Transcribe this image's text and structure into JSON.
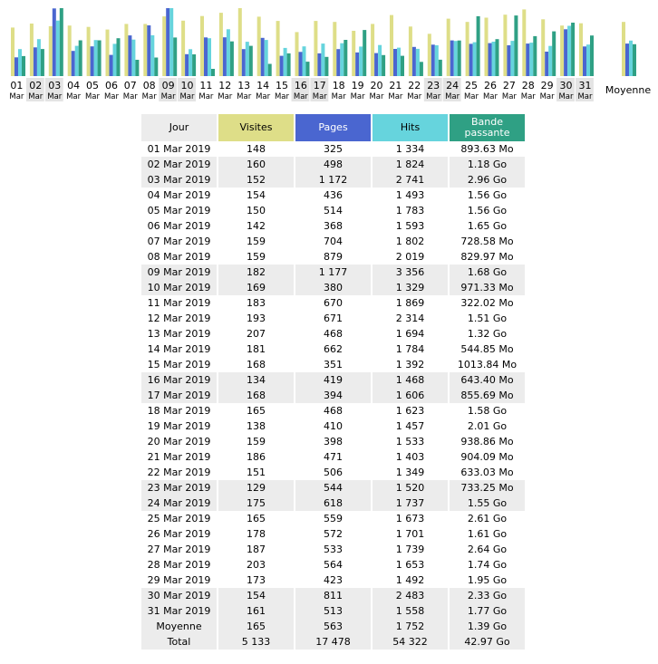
{
  "colors": {
    "visites": "#dede88",
    "pages": "#4a66d0",
    "hits": "#66d4dd",
    "bande": "#2fa084",
    "row_shade": "#ececec",
    "header_jour": "#ececec"
  },
  "table": {
    "headers": [
      "Jour",
      "Visites",
      "Pages",
      "Hits",
      "Bande passante"
    ],
    "rows": [
      {
        "jour": "01 Mar 2019",
        "visites": "148",
        "pages": "325",
        "hits": "1 334",
        "bande": "893.63 Mo",
        "shade": false
      },
      {
        "jour": "02 Mar 2019",
        "visites": "160",
        "pages": "498",
        "hits": "1 824",
        "bande": "1.18 Go",
        "shade": true
      },
      {
        "jour": "03 Mar 2019",
        "visites": "152",
        "pages": "1 172",
        "hits": "2 741",
        "bande": "2.96 Go",
        "shade": true
      },
      {
        "jour": "04 Mar 2019",
        "visites": "154",
        "pages": "436",
        "hits": "1 493",
        "bande": "1.56 Go",
        "shade": false
      },
      {
        "jour": "05 Mar 2019",
        "visites": "150",
        "pages": "514",
        "hits": "1 783",
        "bande": "1.56 Go",
        "shade": false
      },
      {
        "jour": "06 Mar 2019",
        "visites": "142",
        "pages": "368",
        "hits": "1 593",
        "bande": "1.65 Go",
        "shade": false
      },
      {
        "jour": "07 Mar 2019",
        "visites": "159",
        "pages": "704",
        "hits": "1 802",
        "bande": "728.58 Mo",
        "shade": false
      },
      {
        "jour": "08 Mar 2019",
        "visites": "159",
        "pages": "879",
        "hits": "2 019",
        "bande": "829.97 Mo",
        "shade": false
      },
      {
        "jour": "09 Mar 2019",
        "visites": "182",
        "pages": "1 177",
        "hits": "3 356",
        "bande": "1.68 Go",
        "shade": true
      },
      {
        "jour": "10 Mar 2019",
        "visites": "169",
        "pages": "380",
        "hits": "1 329",
        "bande": "971.33 Mo",
        "shade": true
      },
      {
        "jour": "11 Mar 2019",
        "visites": "183",
        "pages": "670",
        "hits": "1 869",
        "bande": "322.02 Mo",
        "shade": false
      },
      {
        "jour": "12 Mar 2019",
        "visites": "193",
        "pages": "671",
        "hits": "2 314",
        "bande": "1.51 Go",
        "shade": false
      },
      {
        "jour": "13 Mar 2019",
        "visites": "207",
        "pages": "468",
        "hits": "1 694",
        "bande": "1.32 Go",
        "shade": false
      },
      {
        "jour": "14 Mar 2019",
        "visites": "181",
        "pages": "662",
        "hits": "1 784",
        "bande": "544.85 Mo",
        "shade": false
      },
      {
        "jour": "15 Mar 2019",
        "visites": "168",
        "pages": "351",
        "hits": "1 392",
        "bande": "1013.84 Mo",
        "shade": false
      },
      {
        "jour": "16 Mar 2019",
        "visites": "134",
        "pages": "419",
        "hits": "1 468",
        "bande": "643.40 Mo",
        "shade": true
      },
      {
        "jour": "17 Mar 2019",
        "visites": "168",
        "pages": "394",
        "hits": "1 606",
        "bande": "855.69 Mo",
        "shade": true
      },
      {
        "jour": "18 Mar 2019",
        "visites": "165",
        "pages": "468",
        "hits": "1 623",
        "bande": "1.58 Go",
        "shade": false
      },
      {
        "jour": "19 Mar 2019",
        "visites": "138",
        "pages": "410",
        "hits": "1 457",
        "bande": "2.01 Go",
        "shade": false
      },
      {
        "jour": "20 Mar 2019",
        "visites": "159",
        "pages": "398",
        "hits": "1 533",
        "bande": "938.86 Mo",
        "shade": false
      },
      {
        "jour": "21 Mar 2019",
        "visites": "186",
        "pages": "471",
        "hits": "1 403",
        "bande": "904.09 Mo",
        "shade": false
      },
      {
        "jour": "22 Mar 2019",
        "visites": "151",
        "pages": "506",
        "hits": "1 349",
        "bande": "633.03 Mo",
        "shade": false
      },
      {
        "jour": "23 Mar 2019",
        "visites": "129",
        "pages": "544",
        "hits": "1 520",
        "bande": "733.25 Mo",
        "shade": true
      },
      {
        "jour": "24 Mar 2019",
        "visites": "175",
        "pages": "618",
        "hits": "1 737",
        "bande": "1.55 Go",
        "shade": true
      },
      {
        "jour": "25 Mar 2019",
        "visites": "165",
        "pages": "559",
        "hits": "1 673",
        "bande": "2.61 Go",
        "shade": false
      },
      {
        "jour": "26 Mar 2019",
        "visites": "178",
        "pages": "572",
        "hits": "1 701",
        "bande": "1.61 Go",
        "shade": false
      },
      {
        "jour": "27 Mar 2019",
        "visites": "187",
        "pages": "533",
        "hits": "1 739",
        "bande": "2.64 Go",
        "shade": false
      },
      {
        "jour": "28 Mar 2019",
        "visites": "203",
        "pages": "564",
        "hits": "1 653",
        "bande": "1.74 Go",
        "shade": false
      },
      {
        "jour": "29 Mar 2019",
        "visites": "173",
        "pages": "423",
        "hits": "1 492",
        "bande": "1.95 Go",
        "shade": false
      },
      {
        "jour": "30 Mar 2019",
        "visites": "154",
        "pages": "811",
        "hits": "2 483",
        "bande": "2.33 Go",
        "shade": true
      },
      {
        "jour": "31 Mar 2019",
        "visites": "161",
        "pages": "513",
        "hits": "1 558",
        "bande": "1.77 Go",
        "shade": true
      }
    ],
    "moyenne": {
      "jour": "Moyenne",
      "visites": "165",
      "pages": "563",
      "hits": "1 752",
      "bande": "1.39 Go"
    },
    "total": {
      "jour": "Total",
      "visites": "5 133",
      "pages": "17 478",
      "hits": "54 322",
      "bande": "42.97 Go"
    }
  },
  "chart_data": {
    "type": "bar",
    "categories": [
      "01",
      "02",
      "03",
      "04",
      "05",
      "06",
      "07",
      "08",
      "09",
      "10",
      "11",
      "12",
      "13",
      "14",
      "15",
      "16",
      "17",
      "18",
      "19",
      "20",
      "21",
      "22",
      "23",
      "24",
      "25",
      "26",
      "27",
      "28",
      "29",
      "30",
      "31"
    ],
    "month_label": "Mar",
    "weekend_days": [
      "02",
      "03",
      "09",
      "10",
      "16",
      "17",
      "23",
      "24",
      "30",
      "31"
    ],
    "average_label": "Moyenne",
    "series": [
      {
        "name": "Visites",
        "values": [
          148,
          160,
          152,
          154,
          150,
          142,
          159,
          159,
          182,
          169,
          183,
          193,
          207,
          181,
          168,
          134,
          168,
          165,
          138,
          159,
          186,
          151,
          129,
          175,
          165,
          178,
          187,
          203,
          173,
          154,
          161
        ],
        "average": 165
      },
      {
        "name": "Pages",
        "values": [
          325,
          498,
          1172,
          436,
          514,
          368,
          704,
          879,
          1177,
          380,
          670,
          671,
          468,
          662,
          351,
          419,
          394,
          468,
          410,
          398,
          471,
          506,
          544,
          618,
          559,
          572,
          533,
          564,
          423,
          811,
          513
        ],
        "average": 563
      },
      {
        "name": "Hits",
        "values": [
          1334,
          1824,
          2741,
          1493,
          1783,
          1593,
          1802,
          2019,
          3356,
          1329,
          1869,
          2314,
          1694,
          1784,
          1392,
          1468,
          1606,
          1623,
          1457,
          1533,
          1403,
          1349,
          1520,
          1737,
          1673,
          1701,
          1739,
          1653,
          1492,
          2483,
          1558
        ],
        "average": 1752
      },
      {
        "name": "Bande passante",
        "values": [
          893.63,
          1208.32,
          3031.04,
          1597.44,
          1597.44,
          1689.6,
          728.58,
          829.97,
          1720.32,
          971.33,
          322.02,
          1546.24,
          1351.68,
          544.85,
          1013.84,
          643.4,
          855.69,
          1617.92,
          2058.24,
          938.86,
          904.09,
          633.03,
          733.25,
          1587.2,
          2672.64,
          1648.64,
          2703.36,
          1781.76,
          1996.8,
          2385.92,
          1812.48
        ],
        "average": 1423.36
      }
    ]
  }
}
